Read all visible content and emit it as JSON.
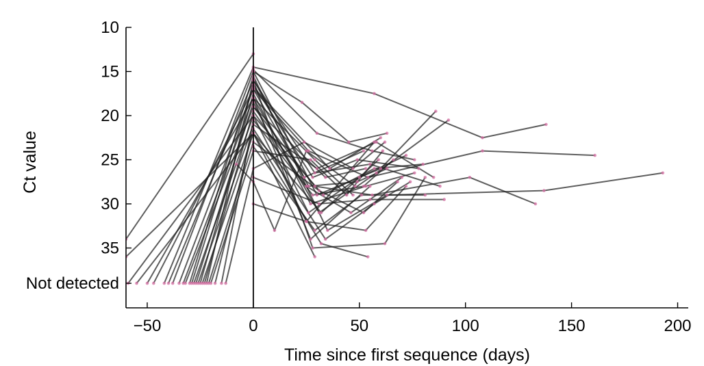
{
  "chart_data": {
    "type": "line",
    "title": "",
    "xlabel": "Time since first sequence (days)",
    "ylabel": "Ct value",
    "xlim": [
      -60,
      205
    ],
    "ylim": [
      10,
      40
    ],
    "y_inverted": true,
    "x_ticks": [
      -50,
      0,
      50,
      100,
      150,
      200
    ],
    "x_tick_labels": [
      "−50",
      "0",
      "50",
      "100",
      "150",
      "200"
    ],
    "y_ticks": [
      10,
      15,
      20,
      25,
      30,
      35,
      39
    ],
    "y_tick_labels": [
      "10",
      "15",
      "20",
      "25",
      "30",
      "35",
      "Not detected"
    ],
    "not_detected_value": 39,
    "reference_line_x": 0,
    "line_color": "#1f1f1f",
    "point_color": "#d46fa3",
    "grid": false,
    "series": [
      {
        "points": [
          [
            -60,
            34
          ],
          [
            0,
            13
          ]
        ]
      },
      {
        "points": [
          [
            -60,
            36
          ],
          [
            0,
            22
          ],
          [
            29,
            36
          ]
        ]
      },
      {
        "points": [
          [
            -59,
            39
          ],
          [
            0,
            20
          ],
          [
            25,
            32
          ],
          [
            57,
            23
          ]
        ]
      },
      {
        "points": [
          [
            -55,
            39
          ],
          [
            0,
            22
          ],
          [
            32,
            31
          ],
          [
            59,
            25
          ]
        ]
      },
      {
        "points": [
          [
            -50,
            39
          ],
          [
            0,
            18
          ],
          [
            27,
            34
          ],
          [
            55,
            28
          ]
        ]
      },
      {
        "points": [
          [
            -47,
            39
          ],
          [
            0,
            17
          ],
          [
            24,
            27
          ],
          [
            52,
            24
          ]
        ]
      },
      {
        "points": [
          [
            -42,
            39
          ],
          [
            0,
            14.5
          ],
          [
            57,
            17.5
          ],
          [
            108,
            22.5
          ],
          [
            138,
            21
          ]
        ]
      },
      {
        "points": [
          [
            -40,
            39
          ],
          [
            0,
            16
          ],
          [
            28,
            35
          ],
          [
            62,
            34.5
          ],
          [
            81,
            27
          ]
        ]
      },
      {
        "points": [
          [
            -38,
            39
          ],
          [
            0,
            15
          ],
          [
            30,
            29
          ],
          [
            60,
            26
          ],
          [
            86,
            19.5
          ]
        ]
      },
      {
        "points": [
          [
            -35,
            39
          ],
          [
            0,
            17
          ],
          [
            26,
            24
          ],
          [
            54,
            27
          ],
          [
            108,
            24
          ],
          [
            161,
            24.5
          ]
        ]
      },
      {
        "points": [
          [
            -33,
            39
          ],
          [
            0,
            18
          ],
          [
            31,
            31
          ],
          [
            58,
            26.5
          ],
          [
            92,
            20.5
          ]
        ]
      },
      {
        "points": [
          [
            -32,
            39
          ],
          [
            0,
            19
          ],
          [
            29,
            28
          ],
          [
            56,
            29
          ],
          [
            102,
            27
          ],
          [
            133,
            30
          ]
        ]
      },
      {
        "points": [
          [
            -30,
            39
          ],
          [
            0,
            15.5
          ],
          [
            35,
            33
          ],
          [
            63,
            29
          ],
          [
            137,
            28.5
          ],
          [
            193,
            26.5
          ]
        ]
      },
      {
        "points": [
          [
            -29,
            39
          ],
          [
            0,
            16.5
          ],
          [
            28,
            27
          ],
          [
            49,
            25
          ],
          [
            78,
            26
          ]
        ]
      },
      {
        "points": [
          [
            -28,
            39
          ],
          [
            0,
            20
          ],
          [
            33,
            29
          ],
          [
            57,
            26
          ],
          [
            80,
            25.5
          ]
        ]
      },
      {
        "points": [
          [
            -27,
            39
          ],
          [
            0,
            18.5
          ],
          [
            26,
            31
          ],
          [
            50,
            27
          ],
          [
            72,
            24.5
          ]
        ]
      },
      {
        "points": [
          [
            -26,
            39
          ],
          [
            0,
            21
          ],
          [
            30,
            26
          ],
          [
            58,
            23
          ],
          [
            85,
            27
          ]
        ]
      },
      {
        "points": [
          [
            -25,
            39
          ],
          [
            0,
            17.5
          ],
          [
            27,
            30
          ],
          [
            53,
            28
          ],
          [
            76,
            26.5
          ]
        ]
      },
      {
        "points": [
          [
            -24,
            39
          ],
          [
            0,
            22
          ],
          [
            32,
            34.5
          ],
          [
            54,
            36
          ]
        ]
      },
      {
        "points": [
          [
            -23,
            39
          ],
          [
            0,
            19.5
          ],
          [
            25,
            28
          ],
          [
            46,
            31
          ],
          [
            70,
            27
          ]
        ]
      },
      {
        "points": [
          [
            -22,
            39
          ],
          [
            0,
            16
          ],
          [
            29,
            26.5
          ],
          [
            55,
            25.5
          ],
          [
            88,
            28
          ]
        ]
      },
      {
        "points": [
          [
            -21,
            39
          ],
          [
            0,
            23
          ],
          [
            31,
            28.5
          ],
          [
            52,
            31
          ],
          [
            68,
            27.5
          ]
        ]
      },
      {
        "points": [
          [
            -20,
            39
          ],
          [
            0,
            24
          ],
          [
            27,
            25
          ],
          [
            44,
            29
          ],
          [
            61,
            24
          ]
        ]
      },
      {
        "points": [
          [
            -18,
            39
          ],
          [
            0,
            21.5
          ],
          [
            34,
            34
          ],
          [
            57,
            30
          ],
          [
            74,
            27.5
          ]
        ]
      },
      {
        "points": [
          [
            -15,
            39
          ],
          [
            0,
            20.5
          ],
          [
            28,
            29
          ],
          [
            52,
            28
          ],
          [
            66,
            25
          ]
        ]
      },
      {
        "points": [
          [
            -13,
            39
          ],
          [
            0,
            26
          ],
          [
            24,
            23
          ],
          [
            47,
            26
          ],
          [
            62,
            23
          ]
        ]
      },
      {
        "points": [
          [
            -8,
            25.5
          ],
          [
            0,
            27.5
          ],
          [
            10,
            33
          ],
          [
            25,
            24
          ],
          [
            48,
            28
          ]
        ]
      },
      {
        "points": [
          [
            0,
            30
          ],
          [
            25,
            32
          ],
          [
            53,
            33
          ],
          [
            72,
            28
          ]
        ]
      },
      {
        "points": [
          [
            0,
            27
          ],
          [
            31,
            30
          ],
          [
            55,
            29.5
          ],
          [
            90,
            29.5
          ]
        ]
      },
      {
        "points": [
          [
            0,
            15
          ],
          [
            23,
            18.5
          ],
          [
            45,
            23
          ],
          [
            63,
            22
          ]
        ]
      },
      {
        "points": [
          [
            0,
            14.8
          ],
          [
            30,
            22
          ],
          [
            56,
            24
          ],
          [
            76,
            25
          ]
        ]
      },
      {
        "points": [
          [
            0,
            16.8
          ],
          [
            36,
            26
          ],
          [
            60,
            22.5
          ]
        ]
      },
      {
        "points": [
          [
            0,
            18
          ],
          [
            29,
            25
          ],
          [
            47,
            29
          ]
        ]
      },
      {
        "points": [
          [
            0,
            15.8
          ],
          [
            26,
            28
          ],
          [
            49,
            27.5
          ],
          [
            63,
            26
          ]
        ]
      },
      {
        "points": [
          [
            0,
            19
          ],
          [
            34,
            27
          ],
          [
            53,
            26
          ]
        ]
      },
      {
        "points": [
          [
            0,
            23.5
          ],
          [
            29,
            33
          ],
          [
            51,
            29
          ],
          [
            81,
            29
          ]
        ]
      }
    ]
  }
}
